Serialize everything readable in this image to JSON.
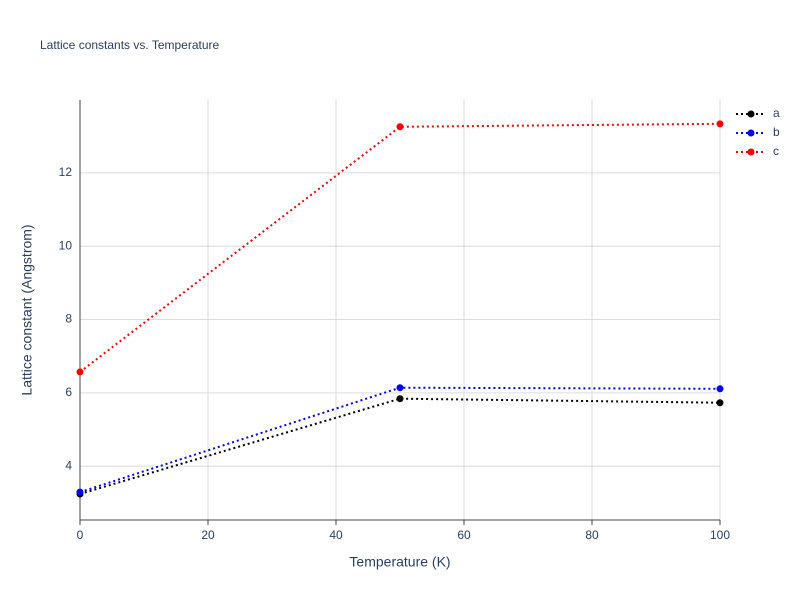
{
  "chart_data": {
    "type": "line",
    "title": "Lattice constants vs. Temperature",
    "x_label": "Temperature (K)",
    "y_label": "Lattice constant (Angstrom)",
    "x": [
      0,
      50,
      100
    ],
    "series": [
      {
        "name": "a",
        "color": "#000000",
        "values": [
          3.24,
          5.84,
          5.73
        ]
      },
      {
        "name": "b",
        "color": "#0000ff",
        "values": [
          3.29,
          6.14,
          6.11
        ]
      },
      {
        "name": "c",
        "color": "#ff0000",
        "values": [
          6.57,
          13.26,
          13.34
        ]
      }
    ],
    "xlim": [
      0,
      100
    ],
    "xticks": [
      0,
      20,
      40,
      60,
      80,
      100
    ],
    "ylim": [
      2.53,
      13.99
    ],
    "yticks": [
      4,
      6,
      8,
      10,
      12
    ],
    "grid": true,
    "legend": "top-right"
  }
}
